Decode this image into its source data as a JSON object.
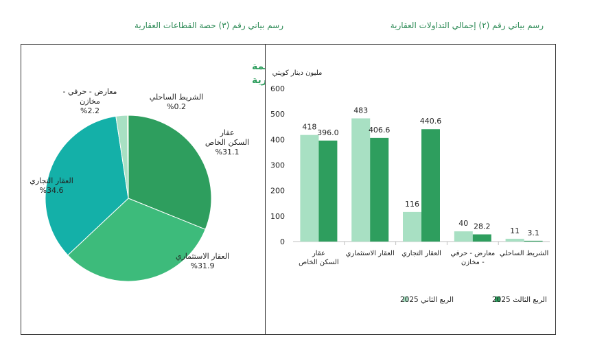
{
  "captions": {
    "right": "رسم بياني رقم (٢) إجمالي التداولات العقارية",
    "left": "رسم بياني رقم (٣) حصة القطاعات العقارية"
  },
  "colors": {
    "q2": "#a8e0c3",
    "q3": "#2e9e5e",
    "pie": [
      "#2e9e5e",
      "#3dbb7b",
      "#14b0a8",
      "#a8e0c3",
      "#7fc75a"
    ]
  },
  "chart_data": [
    {
      "type": "bar",
      "ylabel": "مليون دينار كويتي",
      "ylim": [
        0,
        600
      ],
      "yticks": [
        0,
        100,
        200,
        300,
        400,
        500,
        600
      ],
      "categories": [
        [
          "عقار",
          "السكن الخاص"
        ],
        [
          "العقار الاستثماري"
        ],
        [
          "العقار التجاري"
        ],
        [
          "معارض - حرفي",
          "- مخازن"
        ],
        [
          "الشريط الساحلي"
        ]
      ],
      "series": [
        {
          "name": "الربع الثاني 2025",
          "values": [
            418,
            483,
            116,
            40,
            11
          ],
          "labels": [
            "418",
            "483",
            "116",
            "40",
            "11"
          ]
        },
        {
          "name": "الربع الثالث 2025",
          "values": [
            396.0,
            406.6,
            440.6,
            28.2,
            3.1
          ],
          "labels": [
            "396.0",
            "406.6",
            "440.6",
            "28.2",
            "3.1"
          ]
        }
      ]
    },
    {
      "type": "pie",
      "title": [
        "توزيع حصة التداولات العقارية لكل قطاع من قيمة",
        "إجمالي التداولات العقارية"
      ],
      "slices": [
        {
          "label": [
            "عقار",
            "السكن الخاص",
            "%31.1"
          ],
          "value": 31.1
        },
        {
          "label": [
            "العقار الاستثماري",
            "%31.9"
          ],
          "value": 31.9
        },
        {
          "label": [
            "العقار التجاري",
            "%34.6"
          ],
          "value": 34.6
        },
        {
          "label": [
            "معارض - حرفي -",
            "مخازن",
            "%2.2"
          ],
          "value": 2.2
        },
        {
          "label": [
            "الشريط الساحلي",
            "%0.2"
          ],
          "value": 0.2
        }
      ]
    }
  ]
}
